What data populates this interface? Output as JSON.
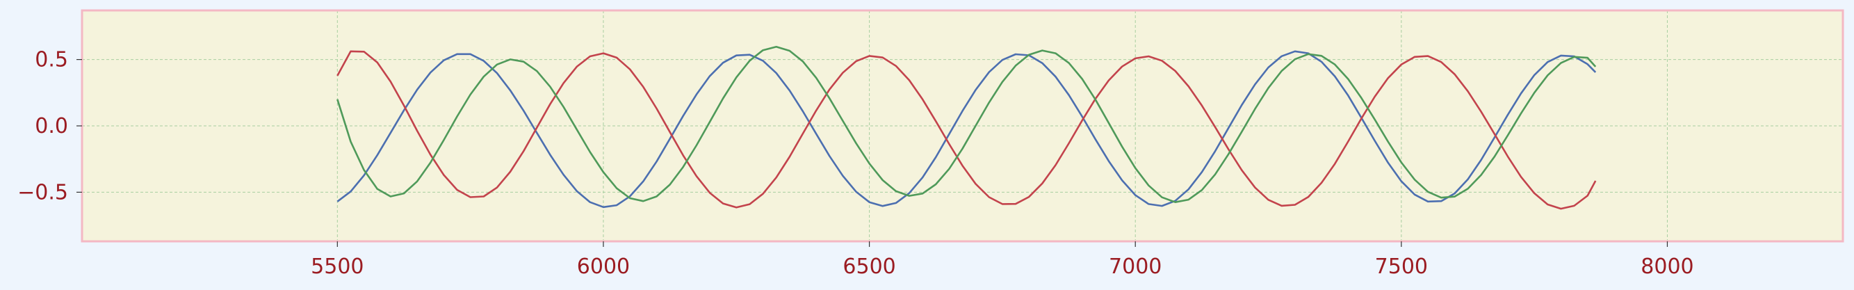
{
  "colors": {
    "page_background": "#eef5fd",
    "plot_background": "#f5f3dc",
    "frame": "#f4b8c4",
    "grid": "#a8cfa0",
    "tick_label": "#9b1c22",
    "series": [
      "#4c6fb0",
      "#c3434c",
      "#4f9a5a"
    ]
  },
  "chart_data": {
    "type": "line",
    "title": "",
    "xlabel": "",
    "ylabel": "",
    "xlim": [
      5020,
      8330
    ],
    "ylim": [
      -0.87,
      0.87
    ],
    "xticks": [
      5500,
      6000,
      6500,
      7000,
      7500,
      8000
    ],
    "yticks": [
      0.5,
      0.0,
      -0.5
    ],
    "xtick_labels": [
      "5500",
      "6000",
      "6500",
      "7000",
      "7500",
      "8000"
    ],
    "ytick_labels": [
      "0.5",
      "0.0",
      "−0.5"
    ],
    "grid": true,
    "grid_style": "dashed",
    "legend": "none",
    "x": [
      5500,
      5525,
      5550,
      5575,
      5600,
      5625,
      5650,
      5675,
      5700,
      5725,
      5750,
      5775,
      5800,
      5825,
      5850,
      5875,
      5900,
      5925,
      5950,
      5975,
      6000,
      6025,
      6050,
      6075,
      6100,
      6125,
      6150,
      6175,
      6200,
      6225,
      6250,
      6275,
      6300,
      6325,
      6350,
      6375,
      6400,
      6425,
      6450,
      6475,
      6500,
      6525,
      6550,
      6575,
      6600,
      6625,
      6650,
      6675,
      6700,
      6725,
      6750,
      6775,
      6800,
      6825,
      6850,
      6875,
      6900,
      6925,
      6950,
      6975,
      7000,
      7025,
      7050,
      7075,
      7100,
      7125,
      7150,
      7175,
      7200,
      7225,
      7250,
      7275,
      7300,
      7325,
      7350,
      7375,
      7400,
      7425,
      7450,
      7475,
      7500,
      7525,
      7550,
      7575,
      7600,
      7625,
      7650,
      7675,
      7700,
      7725,
      7750,
      7775,
      7800,
      7825,
      7850,
      7865
    ],
    "series": [
      {
        "values": [
          -0.57,
          -0.494,
          -0.373,
          -0.221,
          -0.053,
          0.117,
          0.273,
          0.402,
          0.494,
          0.541,
          0.541,
          0.49,
          0.398,
          0.268,
          0.114,
          -0.053,
          -0.218,
          -0.368,
          -0.491,
          -0.575,
          -0.612,
          -0.598,
          -0.531,
          -0.418,
          -0.269,
          -0.098,
          0.075,
          0.237,
          0.375,
          0.476,
          0.531,
          0.536,
          0.491,
          0.398,
          0.267,
          0.11,
          -0.06,
          -0.227,
          -0.376,
          -0.496,
          -0.575,
          -0.604,
          -0.581,
          -0.507,
          -0.389,
          -0.236,
          -0.062,
          0.112,
          0.272,
          0.405,
          0.497,
          0.54,
          0.532,
          0.473,
          0.371,
          0.232,
          0.07,
          -0.101,
          -0.265,
          -0.41,
          -0.522,
          -0.589,
          -0.603,
          -0.565,
          -0.478,
          -0.348,
          -0.191,
          -0.017,
          0.157,
          0.313,
          0.44,
          0.525,
          0.562,
          0.547,
          0.483,
          0.373,
          0.229,
          0.061,
          -0.112,
          -0.277,
          -0.417,
          -0.518,
          -0.57,
          -0.567,
          -0.51,
          -0.403,
          -0.257,
          -0.088,
          0.083,
          0.245,
          0.383,
          0.481,
          0.53,
          0.524,
          0.465,
          0.404
        ]
      },
      {
        "values": [
          0.378,
          0.562,
          0.559,
          0.478,
          0.334,
          0.154,
          -0.037,
          -0.217,
          -0.37,
          -0.482,
          -0.537,
          -0.532,
          -0.465,
          -0.346,
          -0.19,
          -0.013,
          0.164,
          0.322,
          0.446,
          0.524,
          0.547,
          0.514,
          0.426,
          0.294,
          0.131,
          -0.046,
          -0.222,
          -0.379,
          -0.504,
          -0.585,
          -0.615,
          -0.59,
          -0.512,
          -0.389,
          -0.233,
          -0.058,
          0.116,
          0.274,
          0.4,
          0.487,
          0.527,
          0.515,
          0.452,
          0.344,
          0.2,
          0.035,
          -0.137,
          -0.3,
          -0.438,
          -0.537,
          -0.589,
          -0.588,
          -0.535,
          -0.434,
          -0.296,
          -0.131,
          0.041,
          0.204,
          0.343,
          0.447,
          0.509,
          0.524,
          0.491,
          0.414,
          0.298,
          0.153,
          -0.009,
          -0.176,
          -0.334,
          -0.465,
          -0.557,
          -0.602,
          -0.595,
          -0.536,
          -0.429,
          -0.286,
          -0.118,
          0.056,
          0.22,
          0.36,
          0.462,
          0.52,
          0.526,
          0.481,
          0.39,
          0.261,
          0.107,
          -0.061,
          -0.23,
          -0.384,
          -0.508,
          -0.592,
          -0.624,
          -0.602,
          -0.526,
          -0.414
        ]
      },
      {
        "values": [
          0.2,
          -0.119,
          -0.333,
          -0.475,
          -0.532,
          -0.509,
          -0.418,
          -0.277,
          -0.107,
          0.071,
          0.236,
          0.371,
          0.462,
          0.501,
          0.484,
          0.413,
          0.295,
          0.143,
          -0.027,
          -0.197,
          -0.349,
          -0.47,
          -0.545,
          -0.567,
          -0.532,
          -0.443,
          -0.31,
          -0.147,
          0.03,
          0.207,
          0.366,
          0.491,
          0.57,
          0.596,
          0.566,
          0.486,
          0.362,
          0.208,
          0.039,
          -0.13,
          -0.284,
          -0.409,
          -0.492,
          -0.527,
          -0.51,
          -0.44,
          -0.324,
          -0.172,
          0.002,
          0.176,
          0.331,
          0.454,
          0.536,
          0.568,
          0.547,
          0.474,
          0.354,
          0.198,
          0.022,
          -0.156,
          -0.318,
          -0.449,
          -0.538,
          -0.575,
          -0.556,
          -0.484,
          -0.366,
          -0.214,
          -0.044,
          0.128,
          0.285,
          0.414,
          0.502,
          0.541,
          0.528,
          0.463,
          0.353,
          0.21,
          0.048,
          -0.119,
          -0.275,
          -0.405,
          -0.497,
          -0.541,
          -0.533,
          -0.474,
          -0.37,
          -0.232,
          -0.072,
          0.094,
          0.25,
          0.381,
          0.474,
          0.52,
          0.513,
          0.446
        ]
      }
    ]
  }
}
